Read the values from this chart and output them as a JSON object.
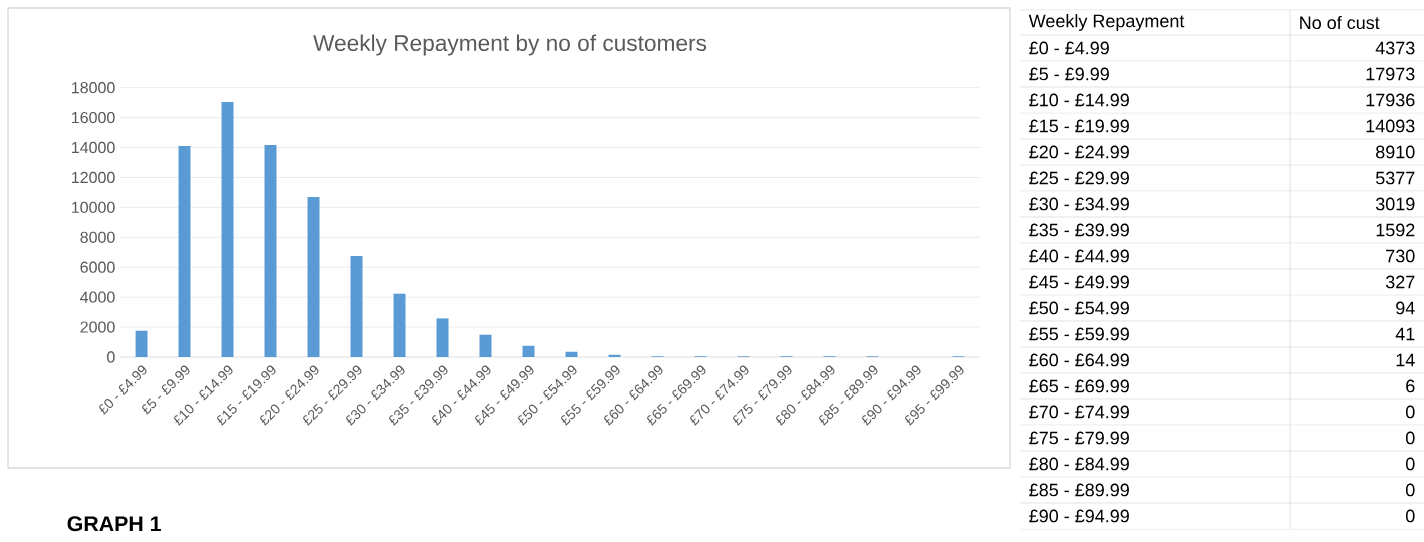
{
  "chart_data": [
    {
      "type": "bar",
      "title": "Weekly Repayment by no of customers",
      "categories": [
        "£0 - £4.99",
        "£5 - £9.99",
        "£10 - £14.99",
        "£15 - £19.99",
        "£20 - £24.99",
        "£25 - £29.99",
        "£30 - £34.99",
        "£35 - £39.99",
        "£40 - £44.99",
        "£45 - £49.99",
        "£50 - £54.99",
        "£55 - £59.99",
        "£60 - £64.99",
        "£65 - £69.99",
        "£70 - £74.99",
        "£75 - £79.99",
        "£80 - £84.99",
        "£85 - £89.99",
        "£90 - £94.99",
        "£95 - £99.99"
      ],
      "values": [
        1750,
        14100,
        17040,
        14160,
        10690,
        6750,
        4230,
        2580,
        1490,
        750,
        350,
        150,
        50,
        50,
        50,
        50,
        50,
        50,
        0,
        50
      ],
      "color": "#5b9bd5",
      "ylim": [
        0,
        18000
      ],
      "yticks": [
        0,
        2000,
        4000,
        6000,
        8000,
        10000,
        12000,
        14000,
        16000,
        18000
      ],
      "grid": "y",
      "annotations": [
        "GRAPH 1"
      ]
    },
    {
      "type": "other",
      "xlabel": "Weekly Repayment",
      "ylabel": "No of cust",
      "categories": [
        "£0 - £4.99",
        "£5 - £9.99",
        "£10 - £14.99",
        "£15 - £19.99",
        "£20 - £24.99",
        "£25 - £29.99",
        "£30 - £34.99",
        "£35 - £39.99",
        "£40 - £44.99",
        "£45 - £49.99",
        "£50 - £54.99",
        "£55 - £59.99",
        "£60 - £64.99",
        "£65 - £69.99",
        "£70 - £74.99",
        "£75 - £79.99",
        "£80 - £84.99",
        "£85 - £89.99",
        "£90 - £94.99"
      ],
      "values": [
        4373,
        17973,
        17936,
        14093,
        8910,
        5377,
        3019,
        1592,
        730,
        327,
        94,
        41,
        14,
        6,
        0,
        0,
        0,
        0,
        0
      ],
      "data_labels": true
    }
  ]
}
